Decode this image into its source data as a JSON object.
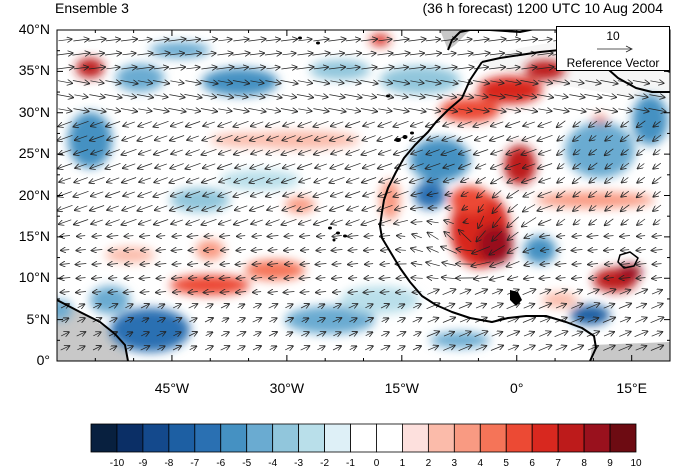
{
  "header": {
    "panel_title": "Ensemble 3",
    "forecast_label": "(36 h forecast) 1200 UTC 10 Aug 2004"
  },
  "map": {
    "projection": "cylindrical equidistant",
    "lon_range": [
      -60,
      20
    ],
    "lat_range": [
      0,
      40
    ],
    "lat_labels": [
      "0°",
      "5°N",
      "10°N",
      "15°N",
      "20°N",
      "25°N",
      "30°N",
      "35°N",
      "40°N"
    ],
    "lon_labels": [
      "45°W",
      "30°W",
      "15°W",
      "0°",
      "15°E"
    ],
    "lon_label_values": [
      -45,
      -30,
      -15,
      0,
      15
    ],
    "ocean_color": "#ffffff",
    "missing_color": "#c8c8c8",
    "features": [
      "Africa coastline",
      "Iberian Peninsula",
      "South America coast",
      "Canary Islands",
      "Cape Verde Islands",
      "Lake Chad"
    ],
    "field": "shaded anomaly with wind vectors"
  },
  "reference_vector": {
    "magnitude": "10",
    "label": "Reference Vector"
  },
  "colorbar": {
    "labels": [
      "-10",
      "-9",
      "-8",
      "-7",
      "-6",
      "-5",
      "-4",
      "-3",
      "-2",
      "-1",
      "0",
      "1",
      "2",
      "3",
      "4",
      "5",
      "6",
      "7",
      "8",
      "9",
      "10"
    ],
    "colors": [
      "#08203f",
      "#0b2f66",
      "#14498c",
      "#1d5fa3",
      "#2a70b2",
      "#4591c2",
      "#6aabd1",
      "#91c6dc",
      "#b9dfea",
      "#def0f7",
      "#ffffff",
      "#ffffff",
      "#fde0dd",
      "#fbbbaa",
      "#f99a82",
      "#f57458",
      "#ec4a34",
      "#d8281f",
      "#bd1b1b",
      "#99111d",
      "#6d0b12"
    ]
  }
}
